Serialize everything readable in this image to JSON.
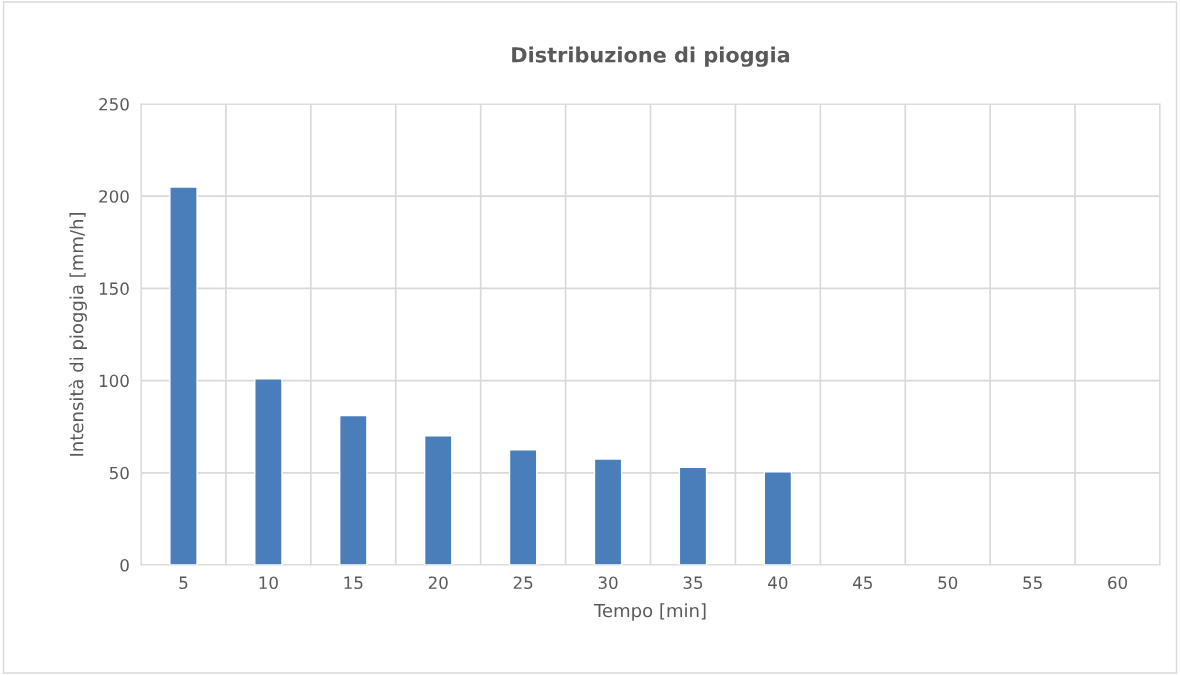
{
  "chart_data": {
    "type": "bar",
    "title": "Distribuzione di pioggia",
    "xlabel": "Tempo [min]",
    "ylabel": "Intensità di pioggia [mm/h]",
    "categories": [
      "5",
      "10",
      "15",
      "20",
      "25",
      "30",
      "35",
      "40",
      "45",
      "50",
      "55",
      "60"
    ],
    "values": [
      205,
      101,
      81,
      70,
      62.5,
      57.5,
      53,
      50.5,
      null,
      null,
      null,
      null
    ],
    "color": "#4a7ebb",
    "ylim": [
      0,
      250
    ],
    "yticks": [
      0,
      50,
      100,
      150,
      200,
      250
    ],
    "grid": true
  }
}
